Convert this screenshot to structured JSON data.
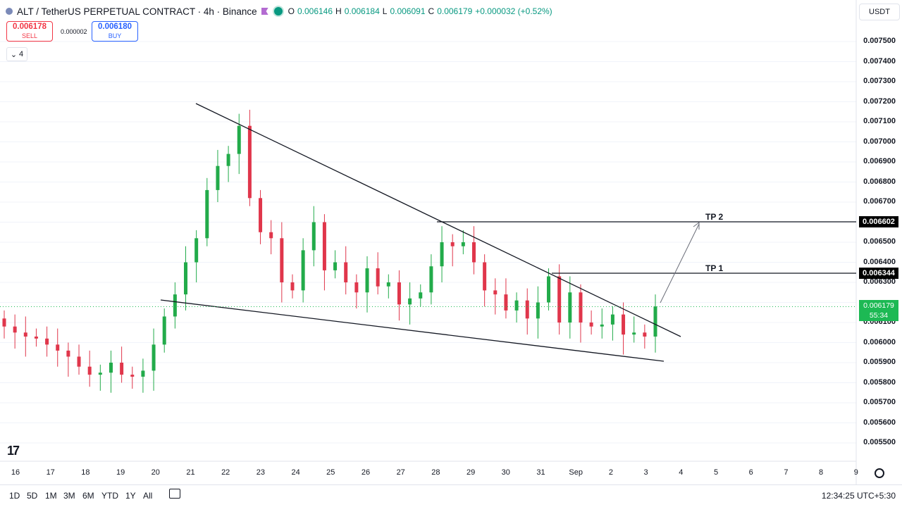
{
  "header": {
    "symbol_title": "ALT / TetherUS PERPETUAL CONTRACT · 4h · Binance",
    "ohlc": [
      {
        "k": "O",
        "v": "0.006146"
      },
      {
        "k": "H",
        "v": "0.006184"
      },
      {
        "k": "L",
        "v": "0.006091"
      },
      {
        "k": "C",
        "v": "0.006179"
      },
      {
        "k": "",
        "v": "+0.000032 (+0.52%)"
      }
    ]
  },
  "trade": {
    "sell_price": "0.006178",
    "sell_label": "SELL",
    "buy_price": "0.006180",
    "buy_label": "BUY",
    "spread": "0.000002"
  },
  "indicator_collapse": "4",
  "currency": "USDT",
  "price_axis": {
    "labels": [
      "0.007500",
      "0.007400",
      "0.007300",
      "0.007200",
      "0.007100",
      "0.007000",
      "0.006900",
      "0.006800",
      "0.006700",
      "0.006500",
      "0.006400",
      "0.006300",
      "0.006100",
      "0.006000",
      "0.005900",
      "0.005800",
      "0.005700",
      "0.005600",
      "0.005500"
    ],
    "tp2_tag": "0.006602",
    "tp1_tag": "0.006344",
    "current_price": "0.006179",
    "countdown": "55:34"
  },
  "annotations": {
    "tp1": "TP 1",
    "tp2": "TP 2"
  },
  "time_axis": [
    "16",
    "17",
    "18",
    "19",
    "20",
    "21",
    "22",
    "23",
    "24",
    "25",
    "26",
    "27",
    "28",
    "29",
    "30",
    "31",
    "Sep",
    "2",
    "3",
    "4",
    "5",
    "6",
    "7",
    "8",
    "9"
  ],
  "timeframes": [
    "1D",
    "5D",
    "1M",
    "3M",
    "6M",
    "YTD",
    "1Y",
    "All"
  ],
  "clock": "12:34:25 UTC+5:30",
  "colors": {
    "up": "#089981",
    "up_candle": "#22ab4a",
    "down": "#e0364b",
    "accent": "#2962ff"
  },
  "chart_data": {
    "type": "candlestick",
    "title": "ALT / TetherUS PERPETUAL CONTRACT · 4h · Binance",
    "ylim": [
      0.0054,
      0.00765
    ],
    "x_categories": [
      "16",
      "17",
      "18",
      "19",
      "20",
      "21",
      "22",
      "23",
      "24",
      "25",
      "26",
      "27",
      "28",
      "29",
      "30",
      "31",
      "Sep",
      "2",
      "3",
      "4",
      "5",
      "6",
      "7",
      "8",
      "9"
    ],
    "close_series_approx": [
      0.00608,
      0.00605,
      0.00603,
      0.00602,
      0.00599,
      0.00596,
      0.00593,
      0.00588,
      0.00584,
      0.00585,
      0.0059,
      0.00584,
      0.00583,
      0.00586,
      0.00599,
      0.00613,
      0.00624,
      0.0064,
      0.00652,
      0.00676,
      0.00688,
      0.00694,
      0.00708,
      0.00672,
      0.00655,
      0.00652,
      0.0063,
      0.00626,
      0.00646,
      0.0066,
      0.00636,
      0.0064,
      0.0063,
      0.00625,
      0.00637,
      0.00628,
      0.0063,
      0.00619,
      0.00622,
      0.00625,
      0.00638,
      0.0065,
      0.00648,
      0.0065,
      0.0064,
      0.00626,
      0.00624,
      0.00616,
      0.00621,
      0.00612,
      0.0062,
      0.00633,
      0.0061,
      0.00625,
      0.0061,
      0.00608,
      0.00609,
      0.00614,
      0.00604,
      0.00605,
      0.00603,
      0.00618
    ]
  }
}
